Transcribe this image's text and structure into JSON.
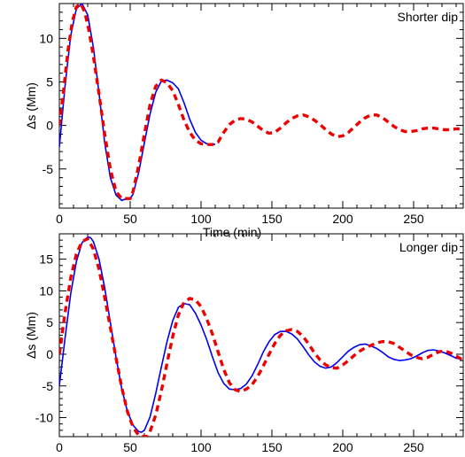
{
  "chart_data": [
    {
      "type": "line",
      "title": "Shorter dip",
      "xlabel": "Time (min)",
      "ylabel": "Δs (Mm)",
      "xlim": [
        0,
        285
      ],
      "ylim": [
        -9.5,
        14
      ],
      "xticks": [
        0,
        50,
        100,
        150,
        200,
        250
      ],
      "yticks": [
        -5,
        0,
        5,
        10
      ],
      "series": [
        {
          "style": "solid",
          "color": "#0000ee",
          "x": [
            0,
            4,
            8,
            12,
            16,
            20,
            24,
            28,
            32,
            36,
            40,
            44,
            48,
            50,
            52,
            56,
            60,
            64,
            68,
            72,
            76,
            80,
            84,
            88,
            92,
            96,
            100,
            104,
            108,
            110
          ],
          "y": [
            -2.5,
            4.5,
            10.3,
            13.4,
            14.0,
            12.7,
            9.0,
            3.7,
            -2.0,
            -6.0,
            -8.0,
            -8.6,
            -8.4,
            -8.4,
            -7.9,
            -5.4,
            -2.0,
            1.3,
            3.8,
            5.1,
            5.2,
            4.9,
            4.2,
            2.6,
            0.7,
            -0.8,
            -1.7,
            -2.1,
            -2.1,
            -2.2
          ]
        },
        {
          "style": "dashed",
          "color": "#ee0000",
          "x": [
            0,
            3,
            6,
            9,
            12,
            15,
            18,
            21,
            24,
            28,
            32,
            36,
            40,
            44,
            48,
            50,
            52,
            56,
            60,
            64,
            68,
            72,
            76,
            80,
            84,
            88,
            92,
            96,
            100,
            104,
            108,
            112,
            116,
            120,
            124,
            128,
            132,
            136,
            140,
            144,
            148,
            152,
            156,
            160,
            164,
            168,
            172,
            176,
            180,
            184,
            188,
            192,
            196,
            200,
            204,
            208,
            212,
            216,
            220,
            224,
            228,
            232,
            236,
            240,
            244,
            248,
            252,
            256,
            260,
            264,
            268,
            272,
            276,
            280,
            284
          ],
          "y": [
            0.0,
            4.0,
            8.5,
            11.8,
            13.6,
            14.0,
            13.0,
            10.8,
            8.0,
            3.6,
            -1.0,
            -5.0,
            -7.6,
            -8.4,
            -8.4,
            -8.4,
            -7.6,
            -4.6,
            -1.0,
            2.4,
            4.5,
            5.2,
            4.9,
            4.0,
            2.4,
            0.6,
            -0.8,
            -1.7,
            -2.1,
            -2.2,
            -2.2,
            -1.9,
            -0.8,
            0.1,
            0.6,
            0.8,
            0.7,
            0.4,
            -0.1,
            -0.6,
            -0.9,
            -0.8,
            -0.3,
            0.3,
            0.8,
            1.1,
            1.2,
            1.0,
            0.6,
            0.1,
            -0.5,
            -1.0,
            -1.3,
            -1.2,
            -0.8,
            -0.2,
            0.4,
            0.9,
            1.2,
            1.2,
            0.9,
            0.4,
            -0.1,
            -0.5,
            -0.7,
            -0.7,
            -0.6,
            -0.4,
            -0.3,
            -0.3,
            -0.4,
            -0.5,
            -0.5,
            -0.4,
            -0.4
          ]
        }
      ]
    },
    {
      "type": "line",
      "title": "Longer dip",
      "xlabel": "Time (min)",
      "ylabel": "Δs (Mm)",
      "xlim": [
        0,
        285
      ],
      "ylim": [
        -13,
        19
      ],
      "xticks": [
        0,
        50,
        100,
        150,
        200,
        250
      ],
      "yticks": [
        -10,
        -5,
        0,
        5,
        10,
        15
      ],
      "series": [
        {
          "style": "solid",
          "color": "#0000ee",
          "x": [
            0,
            4,
            8,
            12,
            16,
            20,
            22,
            24,
            28,
            32,
            36,
            40,
            44,
            48,
            52,
            56,
            58,
            60,
            64,
            68,
            72,
            76,
            80,
            84,
            88,
            92,
            96,
            100,
            104,
            108,
            112,
            116,
            120,
            124,
            128,
            132,
            136,
            140,
            144,
            148,
            152,
            156,
            160,
            164,
            168,
            172,
            176,
            180,
            184,
            188,
            192,
            196,
            200,
            204,
            208,
            212,
            216,
            220,
            224,
            228,
            232,
            236,
            240,
            244,
            248,
            252,
            256,
            260,
            264,
            268,
            272,
            276,
            280,
            284
          ],
          "y": [
            -5.0,
            2.5,
            9.5,
            14.6,
            17.6,
            18.5,
            18.4,
            17.8,
            15.0,
            10.5,
            5.0,
            -0.5,
            -5.4,
            -9.0,
            -11.2,
            -12.2,
            -12.3,
            -12.0,
            -9.9,
            -6.2,
            -2.0,
            2.0,
            5.3,
            7.4,
            8.0,
            7.8,
            6.5,
            4.6,
            2.3,
            -0.4,
            -2.9,
            -4.6,
            -5.5,
            -5.6,
            -5.4,
            -4.7,
            -3.4,
            -1.6,
            0.4,
            2.0,
            3.1,
            3.6,
            3.6,
            3.2,
            2.4,
            1.2,
            -0.1,
            -1.2,
            -1.9,
            -2.2,
            -2.0,
            -1.3,
            -0.4,
            0.5,
            1.1,
            1.5,
            1.6,
            1.3,
            0.9,
            0.3,
            -0.4,
            -0.8,
            -1.0,
            -0.9,
            -0.7,
            -0.3,
            0.2,
            0.6,
            0.7,
            0.5,
            0.2,
            -0.2,
            -0.6,
            -0.8
          ]
        },
        {
          "style": "dashed",
          "color": "#ee0000",
          "x": [
            0,
            4,
            8,
            12,
            16,
            20,
            24,
            28,
            32,
            36,
            40,
            44,
            48,
            52,
            56,
            60,
            62,
            64,
            68,
            72,
            76,
            80,
            84,
            88,
            92,
            96,
            100,
            104,
            108,
            112,
            116,
            120,
            124,
            128,
            132,
            136,
            140,
            144,
            148,
            152,
            156,
            160,
            164,
            168,
            172,
            176,
            180,
            184,
            188,
            192,
            196,
            200,
            204,
            208,
            212,
            216,
            220,
            224,
            228,
            232,
            236,
            240,
            244,
            248,
            252,
            256,
            260,
            264,
            268,
            272,
            276,
            280,
            284
          ],
          "y": [
            0.0,
            6.5,
            12.0,
            15.8,
            17.8,
            18.2,
            16.6,
            13.4,
            9.0,
            4.2,
            -0.6,
            -5.2,
            -9.0,
            -11.5,
            -12.8,
            -13.0,
            -12.9,
            -12.2,
            -9.6,
            -5.8,
            -1.4,
            2.8,
            6.2,
            8.2,
            8.8,
            8.6,
            7.5,
            5.6,
            3.2,
            0.4,
            -2.4,
            -4.5,
            -5.6,
            -5.9,
            -5.5,
            -4.8,
            -3.5,
            -1.8,
            0.0,
            1.7,
            3.0,
            3.7,
            3.9,
            3.6,
            2.8,
            1.6,
            0.2,
            -0.9,
            -1.7,
            -2.1,
            -2.2,
            -1.7,
            -1.0,
            -0.2,
            0.5,
            1.0,
            1.4,
            1.8,
            2.0,
            2.0,
            1.7,
            1.1,
            0.5,
            -0.1,
            -0.5,
            -0.7,
            -0.5,
            0.0,
            0.4,
            0.5,
            0.2,
            -0.3,
            -0.8
          ]
        }
      ]
    }
  ]
}
